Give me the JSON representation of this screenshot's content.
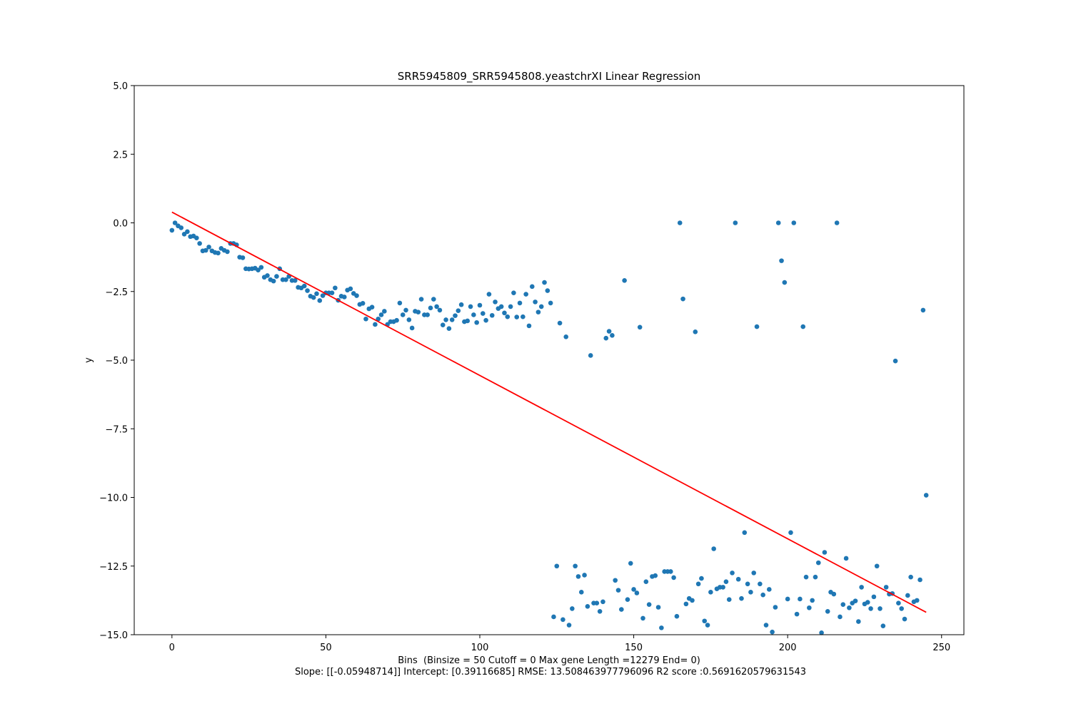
{
  "chart_data": {
    "type": "scatter",
    "title": "SRR5945809_SRR5945808.yeastchrXI Linear Regression",
    "xlabel": "Bins  (Binsize = 50 Cutoff = 0 Max gene Length =12279 End= 0)",
    "stats_line": "Slope: [[-0.05948714]] Intercept: [0.39116685] RMSE: 13.508463977796096 R2 score :0.5691620579631543",
    "ylabel": "y",
    "xlim": [
      -12.25,
      257.25
    ],
    "ylim": [
      -15,
      5
    ],
    "xticks": [
      0,
      50,
      100,
      150,
      200,
      250
    ],
    "xtick_labels": [
      "0",
      "50",
      "100",
      "150",
      "200",
      "250"
    ],
    "yticks": [
      5,
      2.5,
      0,
      -2.5,
      -5,
      -7.5,
      -10,
      -12.5,
      -15
    ],
    "ytick_labels": [
      "5.0",
      "2.5",
      "0.0",
      "−2.5",
      "−5.0",
      "−7.5",
      "−10.0",
      "−12.5",
      "−15.0"
    ],
    "grid": false,
    "colors": {
      "points": "#1f77b4",
      "line": "#ff0000"
    },
    "regression": {
      "slope": -0.05948714,
      "intercept": 0.39116685,
      "x_range": [
        0,
        245
      ]
    },
    "series": [
      {
        "points": [
          [
            0,
            -0.27
          ],
          [
            1,
            0.0
          ],
          [
            2,
            -0.11
          ],
          [
            3,
            -0.18
          ],
          [
            4,
            -0.41
          ],
          [
            5,
            -0.32
          ],
          [
            6,
            -0.5
          ],
          [
            7,
            -0.48
          ],
          [
            8,
            -0.55
          ],
          [
            9,
            -0.75
          ],
          [
            10,
            -1.02
          ],
          [
            11,
            -1.0
          ],
          [
            12,
            -0.88
          ],
          [
            13,
            -1.02
          ],
          [
            14,
            -1.08
          ],
          [
            15,
            -1.1
          ],
          [
            16,
            -0.93
          ],
          [
            17,
            -1.0
          ],
          [
            18,
            -1.05
          ],
          [
            19,
            -0.75
          ],
          [
            20,
            -0.75
          ],
          [
            21,
            -0.8
          ],
          [
            22,
            -1.25
          ],
          [
            23,
            -1.27
          ],
          [
            24,
            -1.67
          ],
          [
            25,
            -1.68
          ],
          [
            26,
            -1.67
          ],
          [
            27,
            -1.65
          ],
          [
            28,
            -1.72
          ],
          [
            29,
            -1.62
          ],
          [
            30,
            -1.98
          ],
          [
            31,
            -1.92
          ],
          [
            32,
            -2.07
          ],
          [
            33,
            -2.12
          ],
          [
            34,
            -1.95
          ],
          [
            35,
            -1.67
          ],
          [
            36,
            -2.07
          ],
          [
            37,
            -2.07
          ],
          [
            38,
            -1.95
          ],
          [
            39,
            -2.1
          ],
          [
            40,
            -2.1
          ],
          [
            41,
            -2.35
          ],
          [
            42,
            -2.37
          ],
          [
            43,
            -2.3
          ],
          [
            44,
            -2.47
          ],
          [
            45,
            -2.67
          ],
          [
            46,
            -2.72
          ],
          [
            47,
            -2.58
          ],
          [
            48,
            -2.83
          ],
          [
            49,
            -2.65
          ],
          [
            50,
            -2.55
          ],
          [
            51,
            -2.55
          ],
          [
            52,
            -2.55
          ],
          [
            53,
            -2.37
          ],
          [
            54,
            -2.82
          ],
          [
            55,
            -2.67
          ],
          [
            56,
            -2.7
          ],
          [
            57,
            -2.45
          ],
          [
            58,
            -2.4
          ],
          [
            59,
            -2.57
          ],
          [
            60,
            -2.65
          ],
          [
            61,
            -2.97
          ],
          [
            62,
            -2.93
          ],
          [
            63,
            -3.5
          ],
          [
            64,
            -3.13
          ],
          [
            65,
            -3.07
          ],
          [
            66,
            -3.7
          ],
          [
            67,
            -3.5
          ],
          [
            68,
            -3.35
          ],
          [
            69,
            -3.22
          ],
          [
            70,
            -3.7
          ],
          [
            71,
            -3.6
          ],
          [
            72,
            -3.6
          ],
          [
            73,
            -3.55
          ],
          [
            74,
            -2.92
          ],
          [
            75,
            -3.35
          ],
          [
            76,
            -3.18
          ],
          [
            77,
            -3.53
          ],
          [
            78,
            -3.83
          ],
          [
            79,
            -3.22
          ],
          [
            80,
            -3.25
          ],
          [
            81,
            -2.78
          ],
          [
            82,
            -3.35
          ],
          [
            83,
            -3.35
          ],
          [
            84,
            -3.1
          ],
          [
            85,
            -2.78
          ],
          [
            86,
            -3.05
          ],
          [
            87,
            -3.18
          ],
          [
            88,
            -3.72
          ],
          [
            89,
            -3.53
          ],
          [
            90,
            -3.85
          ],
          [
            91,
            -3.53
          ],
          [
            92,
            -3.38
          ],
          [
            93,
            -3.2
          ],
          [
            94,
            -2.98
          ],
          [
            95,
            -3.6
          ],
          [
            96,
            -3.57
          ],
          [
            97,
            -3.05
          ],
          [
            98,
            -3.35
          ],
          [
            99,
            -3.63
          ],
          [
            100,
            -3.0
          ],
          [
            101,
            -3.3
          ],
          [
            102,
            -3.55
          ],
          [
            103,
            -2.6
          ],
          [
            104,
            -3.37
          ],
          [
            105,
            -2.88
          ],
          [
            106,
            -3.12
          ],
          [
            107,
            -3.05
          ],
          [
            108,
            -3.28
          ],
          [
            109,
            -3.42
          ],
          [
            110,
            -3.05
          ],
          [
            111,
            -2.55
          ],
          [
            112,
            -3.43
          ],
          [
            113,
            -2.92
          ],
          [
            114,
            -3.42
          ],
          [
            115,
            -2.6
          ],
          [
            116,
            -3.75
          ],
          [
            117,
            -2.32
          ],
          [
            118,
            -2.88
          ],
          [
            119,
            -3.25
          ],
          [
            120,
            -3.05
          ],
          [
            121,
            -2.17
          ],
          [
            122,
            -2.47
          ],
          [
            123,
            -2.92
          ],
          [
            124,
            -14.35
          ],
          [
            125,
            -12.5
          ],
          [
            126,
            -3.65
          ],
          [
            127,
            -14.45
          ],
          [
            128,
            -4.15
          ],
          [
            129,
            -14.65
          ],
          [
            130,
            -14.05
          ],
          [
            131,
            -12.5
          ],
          [
            132,
            -12.88
          ],
          [
            133,
            -13.45
          ],
          [
            134,
            -12.83
          ],
          [
            135,
            -13.97
          ],
          [
            136,
            -4.83
          ],
          [
            137,
            -13.85
          ],
          [
            138,
            -13.85
          ],
          [
            139,
            -14.15
          ],
          [
            140,
            -13.8
          ],
          [
            141,
            -4.2
          ],
          [
            142,
            -3.95
          ],
          [
            143,
            -4.1
          ],
          [
            144,
            -13.02
          ],
          [
            145,
            -13.38
          ],
          [
            146,
            -14.08
          ],
          [
            147,
            -2.1
          ],
          [
            148,
            -13.72
          ],
          [
            149,
            -12.4
          ],
          [
            150,
            -13.35
          ],
          [
            151,
            -13.48
          ],
          [
            152,
            -3.8
          ],
          [
            153,
            -14.4
          ],
          [
            154,
            -13.07
          ],
          [
            155,
            -13.9
          ],
          [
            156,
            -12.88
          ],
          [
            157,
            -12.85
          ],
          [
            158,
            -14.0
          ],
          [
            159,
            -14.75
          ],
          [
            160,
            -12.7
          ],
          [
            161,
            -12.7
          ],
          [
            162,
            -12.7
          ],
          [
            163,
            -12.92
          ],
          [
            164,
            -14.33
          ],
          [
            165,
            0.0
          ],
          [
            166,
            -2.77
          ],
          [
            167,
            -13.88
          ],
          [
            168,
            -13.68
          ],
          [
            169,
            -13.75
          ],
          [
            170,
            -3.97
          ],
          [
            171,
            -13.15
          ],
          [
            172,
            -12.95
          ],
          [
            173,
            -14.5
          ],
          [
            174,
            -14.65
          ],
          [
            175,
            -13.45
          ],
          [
            176,
            -11.87
          ],
          [
            177,
            -13.33
          ],
          [
            178,
            -13.27
          ],
          [
            179,
            -13.27
          ],
          [
            180,
            -13.07
          ],
          [
            181,
            -13.72
          ],
          [
            182,
            -12.75
          ],
          [
            183,
            0.0
          ],
          [
            184,
            -12.98
          ],
          [
            185,
            -13.68
          ],
          [
            186,
            -11.28
          ],
          [
            187,
            -13.15
          ],
          [
            188,
            -13.45
          ],
          [
            189,
            -12.75
          ],
          [
            190,
            -3.78
          ],
          [
            191,
            -13.15
          ],
          [
            192,
            -13.55
          ],
          [
            193,
            -14.65
          ],
          [
            194,
            -13.35
          ],
          [
            195,
            -14.9
          ],
          [
            196,
            -14.0
          ],
          [
            197,
            0.0
          ],
          [
            198,
            -1.38
          ],
          [
            199,
            -2.17
          ],
          [
            200,
            -13.7
          ],
          [
            201,
            -11.28
          ],
          [
            202,
            0.0
          ],
          [
            203,
            -14.25
          ],
          [
            204,
            -13.7
          ],
          [
            205,
            -3.78
          ],
          [
            206,
            -12.9
          ],
          [
            207,
            -14.02
          ],
          [
            208,
            -13.75
          ],
          [
            209,
            -12.9
          ],
          [
            210,
            -12.38
          ],
          [
            211,
            -14.93
          ],
          [
            212,
            -12.0
          ],
          [
            213,
            -14.15
          ],
          [
            214,
            -13.45
          ],
          [
            215,
            -13.52
          ],
          [
            216,
            0.0
          ],
          [
            217,
            -14.35
          ],
          [
            218,
            -13.9
          ],
          [
            219,
            -12.22
          ],
          [
            220,
            -14.02
          ],
          [
            221,
            -13.85
          ],
          [
            222,
            -13.77
          ],
          [
            223,
            -14.52
          ],
          [
            224,
            -13.27
          ],
          [
            225,
            -13.88
          ],
          [
            226,
            -13.82
          ],
          [
            227,
            -14.05
          ],
          [
            228,
            -13.62
          ],
          [
            229,
            -12.5
          ],
          [
            230,
            -14.05
          ],
          [
            231,
            -14.68
          ],
          [
            232,
            -13.27
          ],
          [
            233,
            -13.52
          ],
          [
            234,
            -13.5
          ],
          [
            235,
            -5.03
          ],
          [
            236,
            -13.85
          ],
          [
            237,
            -14.05
          ],
          [
            238,
            -14.43
          ],
          [
            239,
            -13.57
          ],
          [
            240,
            -12.9
          ],
          [
            241,
            -13.8
          ],
          [
            242,
            -13.75
          ],
          [
            243,
            -13.0
          ],
          [
            244,
            -3.18
          ],
          [
            245,
            -9.92
          ]
        ]
      }
    ]
  }
}
